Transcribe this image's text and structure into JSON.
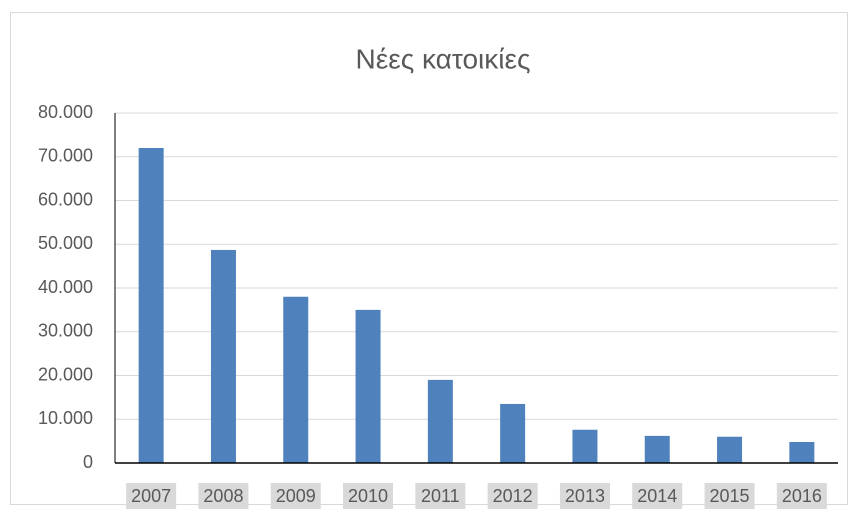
{
  "chart_data": {
    "type": "bar",
    "title": "Νέες κατοικίες",
    "categories": [
      "2007",
      "2008",
      "2009",
      "2010",
      "2011",
      "2012",
      "2013",
      "2014",
      "2015",
      "2016"
    ],
    "values": [
      72000,
      48700,
      38000,
      35000,
      19000,
      13500,
      7600,
      6200,
      6000,
      4800
    ],
    "color": "#4f81bd",
    "ylim": [
      0,
      80000
    ],
    "yticks": [
      0,
      {
        "value": 10000,
        "label": "10.000"
      },
      {
        "value": 20000,
        "label": "20.000"
      },
      {
        "value": 30000,
        "label": "30.000"
      },
      {
        "value": 40000,
        "label": "40.000"
      },
      {
        "value": 50000,
        "label": "50.000"
      },
      {
        "value": 60000,
        "label": "60.000"
      },
      {
        "value": 70000,
        "label": "70.000"
      },
      {
        "value": 80000,
        "label": "80.000"
      }
    ],
    "grid": true
  }
}
